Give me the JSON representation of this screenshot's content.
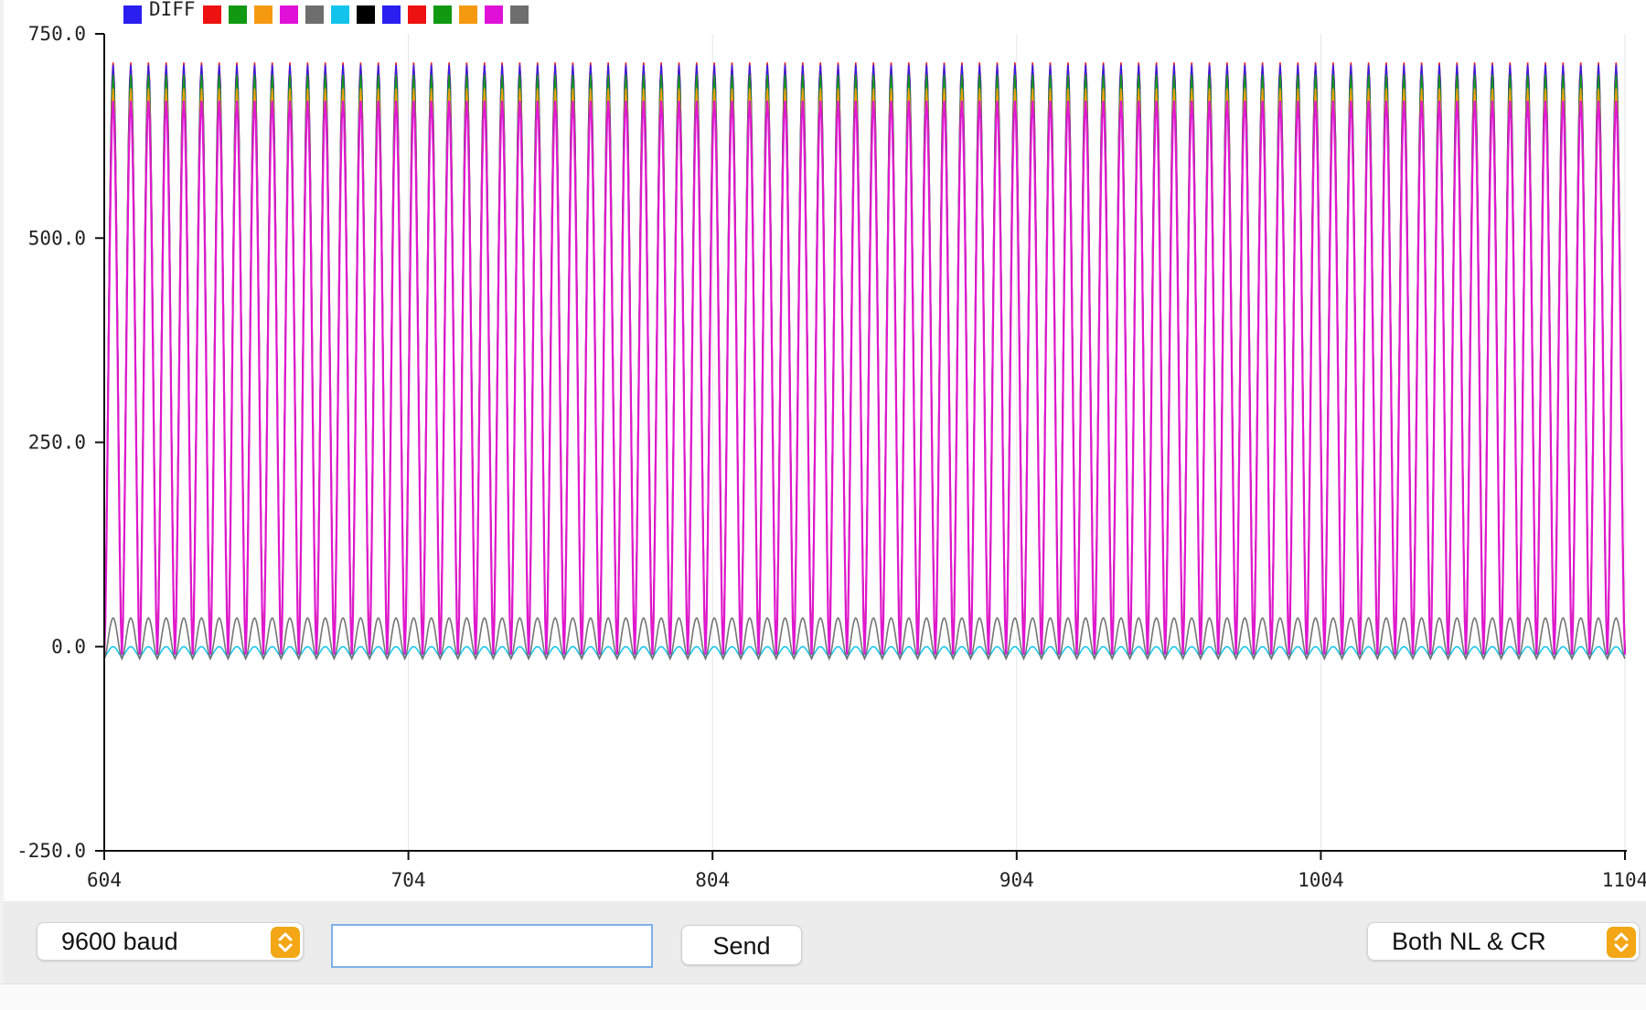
{
  "legend": {
    "first_label": "DIFF",
    "swatches": [
      "#2b1ef0",
      "#ee1111",
      "#119911",
      "#f59a10",
      "#e010d8",
      "#6e6e6e",
      "#12c4ec",
      "#000000",
      "#2b1ef0",
      "#ee1111",
      "#119911",
      "#f59a10",
      "#e010d8",
      "#6e6e6e"
    ]
  },
  "chart_data": {
    "type": "line",
    "title": "",
    "xlabel": "",
    "ylabel": "",
    "xlim": [
      604,
      1104
    ],
    "ylim": [
      -250.0,
      750.0
    ],
    "x_ticks": [
      "604",
      "704",
      "804",
      "904",
      "1004",
      "1104"
    ],
    "y_ticks": [
      "750.0",
      "500.0",
      "250.0",
      "0.0",
      "-250.0"
    ],
    "grid": "vertical",
    "legend_placement": "top-left",
    "num_cycles": 86,
    "series": [
      {
        "color": "#ee1111",
        "peak": 715,
        "trough": -5
      },
      {
        "color": "#2b1ef0",
        "peak": 712,
        "trough": -8
      },
      {
        "color": "#119911",
        "peak": 700,
        "trough": -3
      },
      {
        "color": "#f59a10",
        "peak": 683,
        "trough": 0
      },
      {
        "color": "#e010d8",
        "peak": 668,
        "trough": -10
      },
      {
        "color": "#12c4ec",
        "peak": 0,
        "trough": -12
      },
      {
        "color": "#6e6e6e",
        "peak": 35,
        "trough": -15
      }
    ]
  },
  "toolbar": {
    "baud": "9600 baud",
    "input_value": "",
    "send_label": "Send",
    "line_ending": "Both NL & CR",
    "accent": "#f3a716"
  }
}
